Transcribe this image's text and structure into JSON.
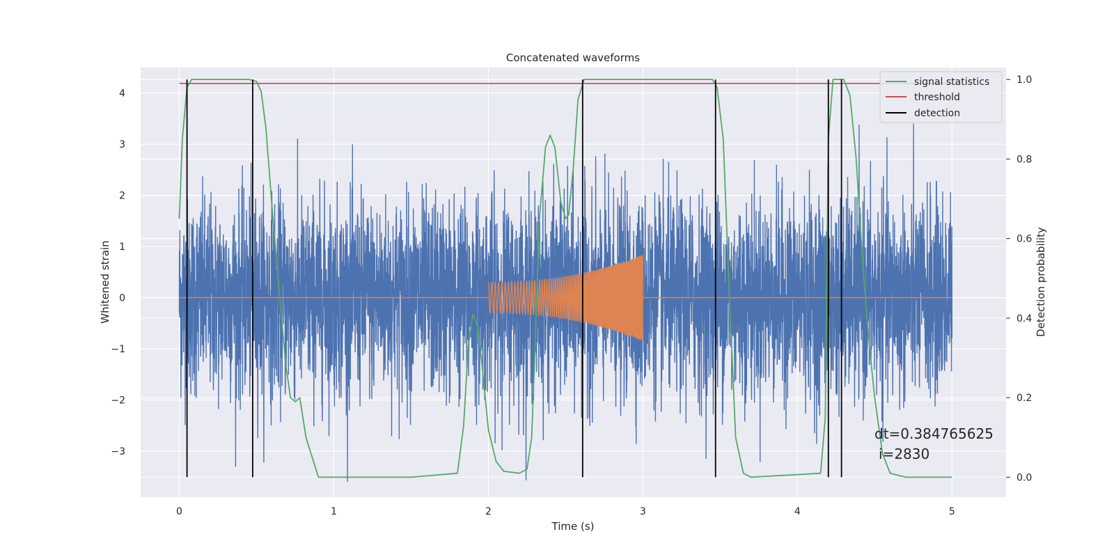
{
  "chart_data": {
    "type": "line",
    "title": "Concatenated waveforms",
    "xlabel": "Time (s)",
    "ylabel": "Whitened strain",
    "ylabel_right": "Detection probability",
    "xlim": [
      -0.25,
      5.35
    ],
    "ylim": [
      -3.9,
      4.5
    ],
    "ylim_right": [
      -0.05,
      1.03
    ],
    "x_ticks": [
      0,
      1,
      2,
      3,
      4,
      5
    ],
    "y_ticks": [
      -3,
      -2,
      -1,
      0,
      1,
      2,
      3,
      4
    ],
    "y_tick_labels": [
      "−3",
      "−2",
      "−1",
      "0",
      "1",
      "2",
      "3",
      "4"
    ],
    "y_right_ticks": [
      0.0,
      0.2,
      0.4,
      0.6,
      0.8,
      1.0
    ],
    "y_right_tick_labels": [
      "0.0",
      "0.2",
      "0.4",
      "0.6",
      "0.8",
      "1.0"
    ],
    "grid": true,
    "legend_position": "top-right",
    "legend": [
      "signal statistics",
      "threshold",
      "detection"
    ],
    "annotation": {
      "dt": "dt=0.384765625",
      "i": "i=2830"
    },
    "series": [
      {
        "name": "whitened strain (noise)",
        "color": "#4c72b0",
        "x_range": [
          0,
          5
        ],
        "amplitude_range": [
          -3.6,
          4.1
        ]
      },
      {
        "name": "injected chirp",
        "color": "#dd8452",
        "x_range": [
          2,
          3
        ],
        "start_amplitude": 0.3,
        "end_amplitude": 0.85
      },
      {
        "name": "signal statistics",
        "color": "#55a868",
        "axis": "right",
        "x": [
          0,
          0.02,
          0.05,
          0.08,
          0.12,
          0.2,
          0.45,
          0.5,
          0.53,
          0.56,
          0.6,
          0.65,
          0.69,
          0.72,
          0.75,
          0.78,
          0.82,
          0.9,
          1.5,
          1.8,
          1.84,
          1.87,
          1.9,
          1.93,
          1.96,
          2.0,
          2.05,
          2.1,
          2.2,
          2.25,
          2.28,
          2.3,
          2.33,
          2.37,
          2.4,
          2.43,
          2.47,
          2.5,
          2.52,
          2.55,
          2.58,
          2.62,
          2.66,
          2.7,
          3.45,
          3.48,
          3.52,
          3.56,
          3.6,
          3.65,
          3.7,
          4.15,
          4.18,
          4.2,
          4.23,
          4.26,
          4.3,
          4.34,
          4.38,
          4.42,
          4.46,
          4.5,
          4.55,
          4.6,
          4.7,
          5.0
        ],
        "y": [
          0.65,
          0.85,
          0.98,
          1.0,
          1.0,
          1.0,
          1.0,
          0.995,
          0.97,
          0.88,
          0.68,
          0.45,
          0.28,
          0.2,
          0.19,
          0.2,
          0.1,
          0.0,
          0.0,
          0.01,
          0.13,
          0.33,
          0.41,
          0.38,
          0.28,
          0.12,
          0.04,
          0.015,
          0.01,
          0.02,
          0.1,
          0.3,
          0.65,
          0.83,
          0.86,
          0.83,
          0.69,
          0.65,
          0.66,
          0.78,
          0.95,
          1.0,
          1.0,
          1.0,
          1.0,
          0.98,
          0.85,
          0.45,
          0.1,
          0.01,
          0.0,
          0.01,
          0.15,
          0.85,
          1.0,
          1.0,
          1.0,
          0.96,
          0.8,
          0.55,
          0.35,
          0.2,
          0.06,
          0.01,
          0.0,
          0.0
        ]
      },
      {
        "name": "threshold",
        "color": "#c44e52",
        "axis": "right",
        "x_range": [
          0,
          5
        ],
        "value": 0.99
      },
      {
        "name": "detection",
        "color": "#000000",
        "axis": "right",
        "x": [
          0.05,
          0.475,
          2.61,
          3.47,
          4.2,
          4.285
        ],
        "y_range": [
          0,
          1.0
        ]
      }
    ]
  }
}
